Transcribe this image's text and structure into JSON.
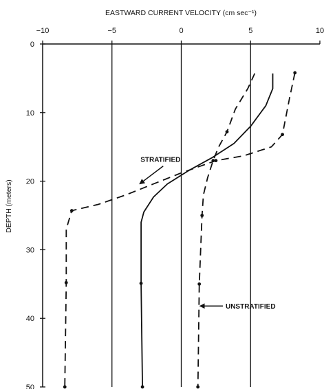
{
  "chart_data": {
    "type": "line",
    "title": "",
    "xlabel": "EASTWARD CURRENT VELOCITY (cm sec⁻¹)",
    "ylabel": "DEPTH (meters)",
    "x_axis_position": "top",
    "y_inverted": true,
    "xlim": [
      -10,
      10
    ],
    "ylim": [
      0,
      50
    ],
    "xticks": [
      -10,
      -5,
      0,
      5,
      10
    ],
    "yticks": [
      0,
      10,
      20,
      30,
      40,
      50
    ],
    "grid": "vertical",
    "gridlines_x": [
      -5,
      0,
      5
    ],
    "series": [
      {
        "style": "dashed",
        "markers": true,
        "points": [
          {
            "x": 8.2,
            "y": 4.2
          },
          {
            "x": 7.8,
            "y": 8
          },
          {
            "x": 7.3,
            "y": 13.2
          },
          {
            "x": 6.5,
            "y": 15.0
          },
          {
            "x": 4.5,
            "y": 16.3
          },
          {
            "x": 2.5,
            "y": 17.0
          },
          {
            "x": 0.0,
            "y": 18.8
          },
          {
            "x": -2.0,
            "y": 20.4
          },
          {
            "x": -4.0,
            "y": 22.0
          },
          {
            "x": -6.0,
            "y": 23.4
          },
          {
            "x": -7.9,
            "y": 24.3
          },
          {
            "x": -8.3,
            "y": 27.0
          },
          {
            "x": -8.3,
            "y": 34.8
          },
          {
            "x": -8.4,
            "y": 50.0
          }
        ],
        "marker_indices": [
          0,
          2,
          5,
          10,
          12,
          13
        ]
      },
      {
        "style": "solid",
        "markers": true,
        "points": [
          {
            "x": 6.6,
            "y": 4.3
          },
          {
            "x": 6.6,
            "y": 6.5
          },
          {
            "x": 6.1,
            "y": 9.0
          },
          {
            "x": 5.0,
            "y": 12.0
          },
          {
            "x": 3.8,
            "y": 14.5
          },
          {
            "x": 2.2,
            "y": 16.6
          },
          {
            "x": 0.5,
            "y": 18.5
          },
          {
            "x": -1.0,
            "y": 20.4
          },
          {
            "x": -2.0,
            "y": 22.3
          },
          {
            "x": -2.7,
            "y": 24.5
          },
          {
            "x": -2.9,
            "y": 26.0
          },
          {
            "x": -2.9,
            "y": 34.9
          },
          {
            "x": -2.8,
            "y": 50.0
          }
        ],
        "marker_indices": [
          11,
          12
        ]
      },
      {
        "style": "dashed",
        "markers": true,
        "points": [
          {
            "x": 5.3,
            "y": 4.3
          },
          {
            "x": 4.8,
            "y": 6.5
          },
          {
            "x": 3.9,
            "y": 9.5
          },
          {
            "x": 3.3,
            "y": 12.8
          },
          {
            "x": 2.7,
            "y": 15.0
          },
          {
            "x": 2.3,
            "y": 17.0
          },
          {
            "x": 1.9,
            "y": 19.5
          },
          {
            "x": 1.6,
            "y": 22.0
          },
          {
            "x": 1.5,
            "y": 25.0
          },
          {
            "x": 1.4,
            "y": 30.0
          },
          {
            "x": 1.3,
            "y": 35.0
          },
          {
            "x": 1.2,
            "y": 50.0
          }
        ],
        "marker_indices": [
          3,
          5,
          8,
          10,
          11
        ]
      }
    ],
    "annotations": [
      {
        "text": "STRATIFIED",
        "anchor_x": -1.5,
        "anchor_y": 17.2,
        "arrow_to_x": -3.0,
        "arrow_to_y": 20.6
      },
      {
        "text": "UNSTRATIFIED",
        "anchor_x": 3.2,
        "anchor_y": 38.2,
        "arrow_to_x": 1.3,
        "arrow_to_y": 38.2
      }
    ]
  }
}
